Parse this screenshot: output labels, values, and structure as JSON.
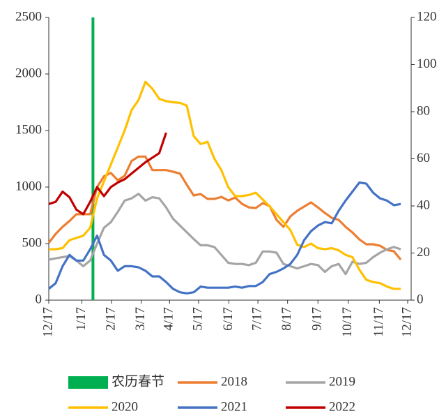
{
  "chart_data": {
    "type": "line",
    "x": [
      0,
      1,
      2,
      3,
      4,
      5,
      6,
      7,
      8,
      9,
      10,
      11,
      12,
      13,
      14,
      15,
      16,
      17,
      18,
      19,
      20,
      21,
      22,
      23,
      24,
      25,
      26,
      27,
      28,
      29,
      30,
      31,
      32,
      33,
      34,
      35,
      36,
      37,
      38,
      39,
      40,
      41,
      42,
      43,
      44,
      45,
      46,
      47,
      48,
      49,
      50,
      51
    ],
    "xlim": [
      0,
      52
    ],
    "xticks": [
      {
        "value": 0,
        "label": "12/17"
      },
      {
        "value": 4.8,
        "label": "1/17"
      },
      {
        "value": 9.1,
        "label": "2/17"
      },
      {
        "value": 13.4,
        "label": "3/17"
      },
      {
        "value": 17.5,
        "label": "4/17"
      },
      {
        "value": 21.7,
        "label": "5/17"
      },
      {
        "value": 26.1,
        "label": "6/17"
      },
      {
        "value": 30.3,
        "label": "7/17"
      },
      {
        "value": 34.6,
        "label": "8/17"
      },
      {
        "value": 39,
        "label": "9/17"
      },
      {
        "value": 43.4,
        "label": "10/17"
      },
      {
        "value": 47.9,
        "label": "11/17"
      },
      {
        "value": 52,
        "label": "12/17"
      }
    ],
    "ylim": [
      0,
      2500
    ],
    "yticks": [
      0,
      500,
      1000,
      1500,
      2000,
      2500
    ],
    "y2lim": [
      0,
      120
    ],
    "y2ticks": [
      0,
      20,
      40,
      60,
      80,
      100,
      120
    ],
    "series": [
      {
        "name": "农历春节",
        "type": "bar",
        "color": "#00B050",
        "x": [
          6.4
        ],
        "values": [
          2500
        ]
      },
      {
        "name": "2018",
        "color": "#ED7D31",
        "values": [
          506,
          586,
          648,
          700,
          760,
          760,
          760,
          1000,
          1095,
          1125,
          1060,
          1100,
          1230,
          1270,
          1270,
          1150,
          1150,
          1150,
          1135,
          1120,
          1020,
          925,
          938,
          895,
          895,
          913,
          882,
          907,
          851,
          820,
          815,
          858,
          833,
          710,
          648,
          740,
          790,
          827,
          864,
          820,
          771,
          728,
          710,
          648,
          598,
          537,
          494,
          494,
          481,
          444,
          432,
          358
        ]
      },
      {
        "name": "2019",
        "color": "#A5A5A5",
        "values": [
          358,
          370,
          380,
          390,
          350,
          300,
          350,
          500,
          640,
          690,
          780,
          880,
          900,
          940,
          880,
          910,
          900,
          820,
          720,
          660,
          600,
          540,
          485,
          485,
          470,
          400,
          330,
          320,
          320,
          310,
          330,
          430,
          430,
          420,
          320,
          300,
          280,
          300,
          320,
          310,
          250,
          300,
          320,
          230,
          340,
          320,
          330,
          380,
          420,
          450,
          470,
          450
        ]
      },
      {
        "name": "2020",
        "color": "#FFC000",
        "values": [
          450,
          450,
          460,
          530,
          550,
          570,
          640,
          900,
          1050,
          1200,
          1350,
          1500,
          1680,
          1770,
          1930,
          1870,
          1780,
          1760,
          1750,
          1745,
          1720,
          1450,
          1380,
          1400,
          1250,
          1150,
          1000,
          920,
          920,
          930,
          950,
          890,
          830,
          760,
          690,
          620,
          490,
          470,
          500,
          460,
          450,
          460,
          440,
          400,
          380,
          270,
          180,
          160,
          150,
          120,
          100,
          100
        ]
      },
      {
        "name": "2021",
        "color": "#4472C4",
        "values": [
          100,
          150,
          300,
          400,
          350,
          350,
          450,
          570,
          400,
          350,
          260,
          300,
          300,
          290,
          260,
          210,
          210,
          160,
          100,
          70,
          60,
          70,
          120,
          110,
          110,
          110,
          110,
          120,
          110,
          125,
          125,
          160,
          230,
          250,
          280,
          320,
          400,
          530,
          610,
          660,
          690,
          680,
          790,
          880,
          960,
          1040,
          1030,
          950,
          900,
          880,
          840,
          850
        ]
      },
      {
        "name": "2022",
        "color": "#C00000",
        "values": [
          850,
          870,
          960,
          910,
          800,
          760,
          870,
          1000,
          920,
          1000,
          1040,
          1070,
          1120,
          1170,
          1220,
          1260,
          1300,
          1480,
          null,
          null,
          null,
          null,
          null,
          null,
          null,
          null,
          null,
          null,
          null,
          null,
          null,
          null,
          null,
          null,
          null,
          null,
          null,
          null,
          null,
          null,
          null,
          null,
          null,
          null,
          null,
          null,
          null,
          null,
          null,
          null,
          null,
          null
        ]
      }
    ]
  }
}
